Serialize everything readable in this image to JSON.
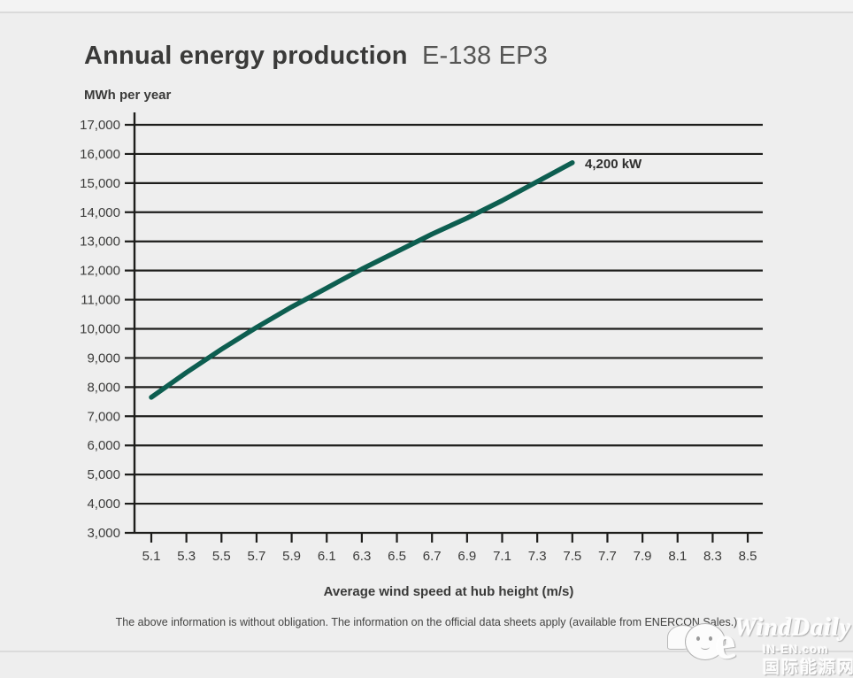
{
  "page": {
    "title_bold": "Annual energy production",
    "title_light": "E-138 EP3",
    "footnote": "The above information is without obligation. The information on the official data sheets apply (available from ENERCON Sales.)"
  },
  "chart_data": {
    "type": "line",
    "title": "Annual energy production E-138 EP3",
    "ylabel": "MWh per year",
    "xlabel": "Average wind speed at hub height (m/s)",
    "xlim": [
      5.1,
      8.5
    ],
    "ylim": [
      3000,
      17000
    ],
    "grid": true,
    "grid_color": "#1d1d1b",
    "x_ticks": [
      5.1,
      5.3,
      5.5,
      5.7,
      5.9,
      6.1,
      6.3,
      6.5,
      6.7,
      6.9,
      7.1,
      7.3,
      7.5,
      7.7,
      7.9,
      8.1,
      8.3,
      8.5
    ],
    "x_tick_labels": [
      "5.1",
      "5.3",
      "5.5",
      "5.7",
      "5.9",
      "6.1",
      "6.3",
      "6.5",
      "6.7",
      "6.9",
      "7.1",
      "7.3",
      "7.5",
      "7.7",
      "7.9",
      "8.1",
      "8.3",
      "8.5"
    ],
    "y_ticks": [
      3000,
      4000,
      5000,
      6000,
      7000,
      8000,
      9000,
      10000,
      11000,
      12000,
      13000,
      14000,
      15000,
      16000,
      17000
    ],
    "y_tick_labels": [
      "3,000",
      "4,000",
      "5,000",
      "6,000",
      "7,000",
      "8,000",
      "9,000",
      "10,000",
      "11,000",
      "12,000",
      "13,000",
      "14,000",
      "15,000",
      "16,000",
      "17,000"
    ],
    "series": [
      {
        "name": "4,200 kW",
        "color": "#0d5e50",
        "x": [
          5.1,
          5.3,
          5.5,
          5.7,
          5.9,
          6.1,
          6.3,
          6.5,
          6.7,
          6.9,
          7.1,
          7.3,
          7.5
        ],
        "values": [
          7650,
          8500,
          9300,
          10050,
          10750,
          11400,
          12050,
          12650,
          13250,
          13800,
          14400,
          15050,
          15700
        ]
      }
    ],
    "legend_position": "annotation-at-line-end"
  },
  "watermark": {
    "brand": "WindDaily",
    "elogo": "e",
    "site": "IN-EN.com",
    "site_cn": "国际能源网"
  }
}
